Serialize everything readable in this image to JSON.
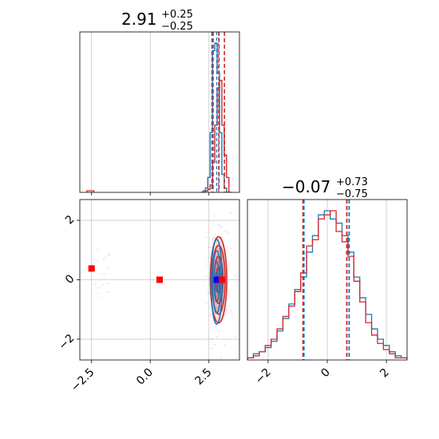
{
  "colors": {
    "series_a": "#1f77b4",
    "series_b": "#d62728",
    "grid": "#c8c8c8",
    "marker_blue": "#0000ff",
    "marker_red": "#ff0000"
  },
  "chart_data": [
    {
      "type": "histogram",
      "panel": "top-left",
      "title": {
        "value": "2.91",
        "plus": "+0.25",
        "minus": "−0.25"
      },
      "xlim": [
        -3.0,
        3.8
      ],
      "grid": true,
      "series": [
        {
          "color": "#1f77b4",
          "x": [
            2.2,
            2.3,
            2.4,
            2.5,
            2.6,
            2.7,
            2.8,
            2.9,
            3.0,
            3.1,
            3.2,
            3.3
          ],
          "values": [
            0,
            1,
            3,
            10,
            40,
            95,
            100,
            80,
            40,
            12,
            3,
            0
          ]
        },
        {
          "color": "#d62728",
          "x": [
            2.3,
            2.4,
            2.5,
            2.6,
            2.7,
            2.8,
            2.9,
            3.0,
            3.1,
            3.2,
            3.3,
            3.4
          ],
          "values": [
            0,
            1,
            2,
            5,
            20,
            45,
            70,
            75,
            45,
            25,
            10,
            0
          ]
        }
      ],
      "quantile_lines": [
        {
          "color": "#d62728",
          "x": [
            2.63,
            3.16
          ]
        },
        {
          "color": "#1f77b4",
          "x": [
            2.68,
            2.93
          ]
        }
      ]
    },
    {
      "type": "contour",
      "panel": "bottom-left",
      "xlim": [
        -3.0,
        3.8
      ],
      "ylim": [
        -2.7,
        2.7
      ],
      "x_ticks": [
        "−2.5",
        "0.0",
        "2.5"
      ],
      "y_ticks": [
        "−2",
        "0",
        "2"
      ],
      "grid": true,
      "series": [
        {
          "color": "#1f77b4",
          "center": [
            2.83,
            -0.07
          ],
          "spread": [
            0.25,
            1.5
          ]
        },
        {
          "color": "#d62728",
          "center": [
            2.91,
            0.0
          ],
          "spread": [
            0.35,
            1.45
          ]
        }
      ],
      "markers": [
        {
          "color": "#ff0000",
          "shape": "square",
          "x": -2.5,
          "y": 0.38
        },
        {
          "color": "#ff0000",
          "shape": "square",
          "x": 0.4,
          "y": 0.0
        },
        {
          "color": "#0000ff",
          "shape": "square",
          "x": 2.83,
          "y": 0.0
        },
        {
          "color": "#ff0000",
          "shape": "square",
          "x": 3.05,
          "y": 0.0
        }
      ]
    },
    {
      "type": "histogram",
      "panel": "bottom-right",
      "title": {
        "value": "−0.07",
        "plus": "+0.73",
        "minus": "−0.75"
      },
      "xlim": [
        -2.7,
        2.7
      ],
      "x_ticks": [
        "−2",
        "0",
        "2"
      ],
      "grid": true,
      "series": [
        {
          "color": "#1f77b4",
          "x": [
            -2.6,
            -2.4,
            -2.2,
            -2.0,
            -1.8,
            -1.6,
            -1.4,
            -1.2,
            -1.0,
            -0.8,
            -0.6,
            -0.4,
            -0.2,
            0.0,
            0.2,
            0.4,
            0.6,
            0.8,
            1.0,
            1.2,
            1.4,
            1.6,
            1.8,
            2.0,
            2.2,
            2.4,
            2.6
          ],
          "values": [
            1,
            3,
            4,
            6,
            9,
            14,
            20,
            27,
            34,
            40,
            52,
            60,
            70,
            72,
            68,
            66,
            60,
            52,
            40,
            30,
            22,
            15,
            10,
            7,
            4,
            2,
            1
          ]
        },
        {
          "color": "#d62728",
          "x": [
            -2.6,
            -2.4,
            -2.2,
            -2.0,
            -1.8,
            -1.6,
            -1.4,
            -1.2,
            -1.0,
            -0.8,
            -0.6,
            -0.4,
            -0.2,
            0.0,
            0.2,
            0.4,
            0.6,
            0.8,
            1.0,
            1.2,
            1.4,
            1.6,
            1.8,
            2.0,
            2.2,
            2.4,
            2.6
          ],
          "values": [
            1,
            2,
            4,
            7,
            10,
            15,
            21,
            26,
            33,
            42,
            55,
            58,
            68,
            70,
            72,
            62,
            57,
            50,
            38,
            28,
            18,
            12,
            8,
            5,
            3,
            1,
            1
          ]
        }
      ],
      "quantile_lines": [
        {
          "color": "#d62728",
          "x": [
            -0.82,
            0.66
          ]
        },
        {
          "color": "#1f77b4",
          "x": [
            -0.79,
            0.74
          ]
        }
      ]
    }
  ]
}
